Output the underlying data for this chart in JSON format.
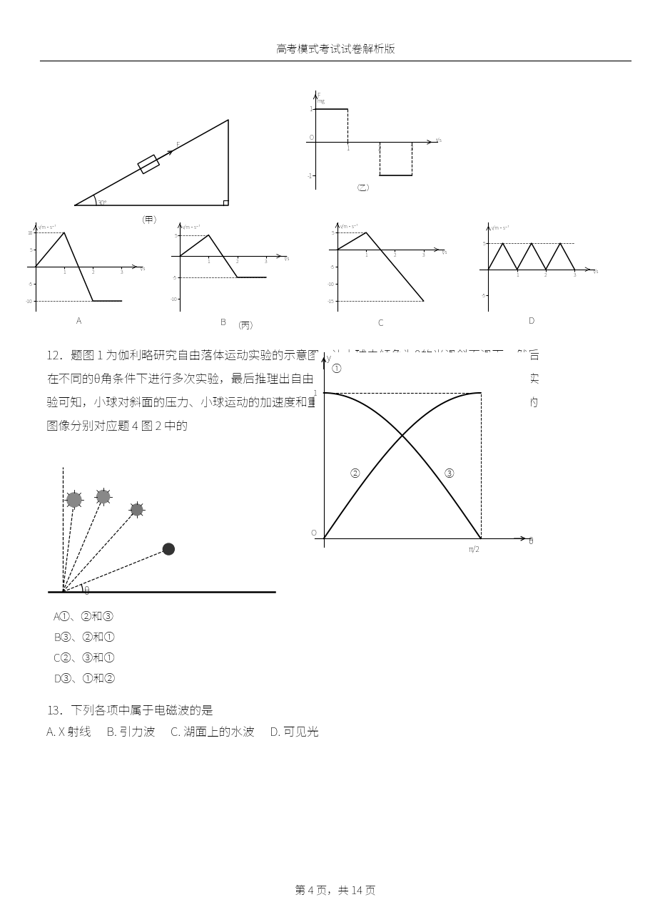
{
  "page_title": "高考模式考试试卷解析版",
  "page_footer": "第 4 页，共 14 页",
  "q12_line1": "12．题图 1 为伽利略研究自由落体运动实验的示意图，让小球由倾角为θ的光滑斜面滑下，然后",
  "q12_line2": "在不同的θ角条件下进行多次实验，最后推理出自由落体运动是一种匀加速直线运动。分析该实",
  "q12_line3": "验可知，小球对斜面的压力、小球运动的加速度和重力加速度与各自最大値的比値 y 随θ变化的",
  "q12_line4": "图像分别对应题 4 图 2 中的",
  "q12_optA": "A①、②和③",
  "q12_optB": "B③、②和①",
  "q12_optC": "C②、③和①",
  "q12_optD": "D③、①和②",
  "q13_text": "13．下列各项中属于电磁波的是",
  "q13_opts": "A. X 射线      B. 引力波      C. 湖面上的水波      D. 可见光",
  "jia_label": "（甲）",
  "yi_label": "（乙）",
  "bing_label": "（丙）"
}
